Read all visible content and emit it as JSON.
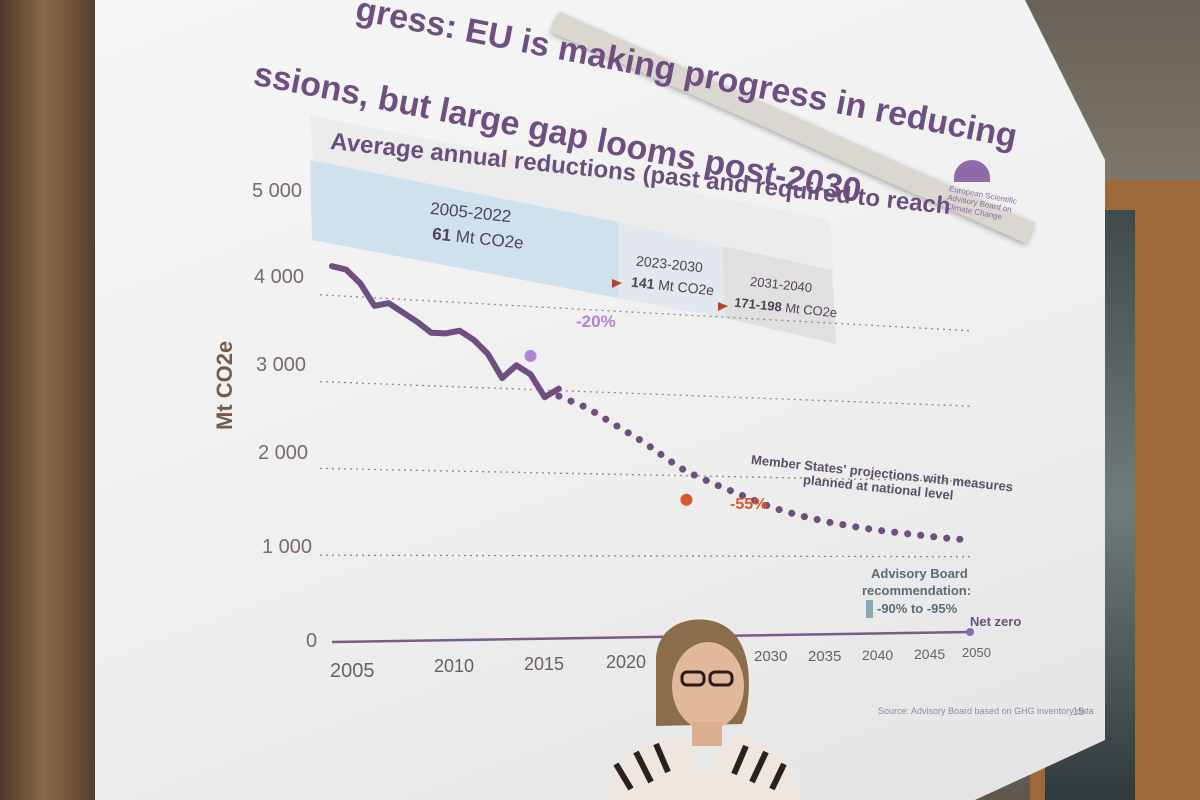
{
  "slide": {
    "title_line1": "gress: EU is making progress in reducing",
    "title_line2": "ssions, but large gap looms post-2030",
    "logo_text": "European Scientific Advisory Board on Climate Change",
    "page_number": "15",
    "source": "Source: Advisory Board based on GHG inventory data"
  },
  "reductions_box": {
    "title": "Average annual reductions (past and required to reach",
    "p1_range": "2005-2022",
    "p1_value": "61",
    "p1_unit": "Mt CO2e",
    "p2_range": "2023-2030",
    "p2_value": "141",
    "p2_unit": "Mt CO2e",
    "p3_range": "2031-2040",
    "p3_value": "171-198",
    "p3_unit": "Mt CO2e",
    "colors": {
      "p1": "#cfe1ec",
      "p2": "#e2e8ee",
      "p3": "#e2dfe0",
      "arrow": "#b5462e"
    }
  },
  "annotations": {
    "minus20": "-20%",
    "minus55": "-55%",
    "projection_l1": "Member States' projections with measures",
    "projection_l2": "planned at national level",
    "advisory_l1": "Advisory Board",
    "advisory_l2": "recommendation:",
    "advisory_l3": "-90% to -95%",
    "net_zero": "Net zero"
  },
  "chart_data": {
    "type": "line",
    "ylabel": "Mt CO2e",
    "xlabel": "",
    "yticks": [
      "5 000",
      "4 000",
      "3 000",
      "2 000",
      "1 000",
      "0"
    ],
    "xticks": [
      "2005",
      "2010",
      "2015",
      "2020",
      "2030",
      "2035",
      "2040",
      "2045",
      "2050"
    ],
    "ylim": [
      0,
      5000
    ],
    "xlim": [
      2005,
      2050
    ],
    "series": [
      {
        "style": "solid",
        "color": "#6e4f80",
        "x": [
          2005,
          2006,
          2007,
          2008,
          2009,
          2010,
          2011,
          2012,
          2013,
          2014,
          2015,
          2016,
          2017,
          2018,
          2019,
          2020,
          2021
        ],
        "y": [
          4330,
          4300,
          4150,
          3900,
          3940,
          3840,
          3740,
          3620,
          3620,
          3660,
          3560,
          3400,
          3120,
          3280,
          3180,
          2910,
          3020
        ]
      },
      {
        "style": "dotted",
        "color": "#6e4f80",
        "x": [
          2021,
          2023,
          2025,
          2027,
          2029,
          2030,
          2032,
          2034,
          2036,
          2038,
          2040,
          2042,
          2044,
          2046,
          2048,
          2050
        ],
        "y": [
          2930,
          2800,
          2600,
          2400,
          2160,
          2050,
          1900,
          1760,
          1620,
          1520,
          1440,
          1380,
          1330,
          1290,
          1250,
          1220
        ]
      }
    ],
    "points": [
      {
        "label": "-20%",
        "x": 2019,
        "y": 3400,
        "color": "#b484d4"
      },
      {
        "label": "-55%",
        "x": 2030,
        "y": 1700,
        "color": "#d9582a"
      },
      {
        "label": "Net zero",
        "x": 2050,
        "y": 0,
        "color": "#8a6aa8"
      }
    ],
    "grid": true,
    "legend": "none"
  }
}
